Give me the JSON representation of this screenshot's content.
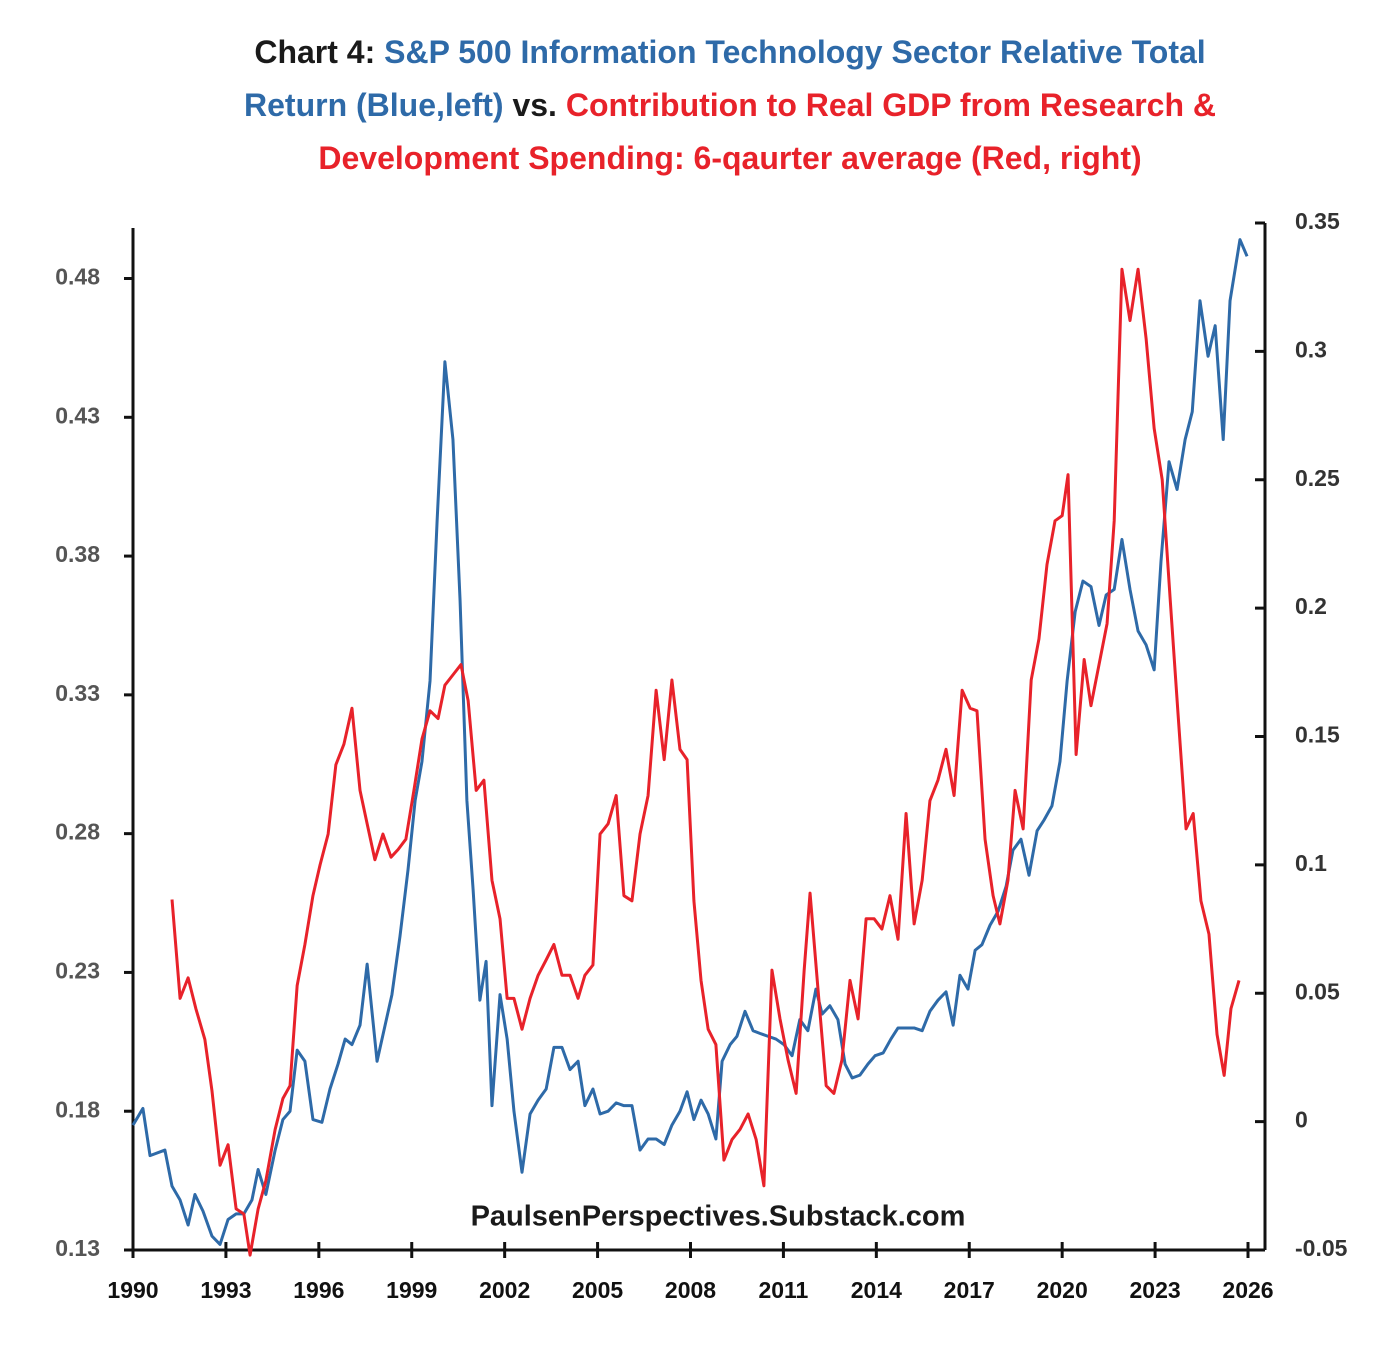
{
  "chart_data": {
    "type": "line",
    "title_lines": [
      [
        {
          "text": "Chart 4: ",
          "color": "#1a1a1a"
        },
        {
          "text": "S&P 500 Information Technology Sector Relative Total",
          "color": "#2e6aa8"
        }
      ],
      [
        {
          "text": "Return (Blue,left)",
          "color": "#2e6aa8"
        },
        {
          "text": " vs. ",
          "color": "#1a1a1a"
        },
        {
          "text": "Contribution to Real GDP from Research &",
          "color": "#e8222a"
        }
      ],
      [
        {
          "text": "Development Spending: 6-qaurter average (Red, right)",
          "color": "#e8222a"
        }
      ]
    ],
    "annotation": "PaulsenPerspectives.Substack.com",
    "xlim": [
      1990,
      2026
    ],
    "xticks": [
      1990,
      1993,
      1996,
      1999,
      2002,
      2005,
      2008,
      2011,
      2014,
      2017,
      2020,
      2023,
      2026
    ],
    "ylim": [
      0.13,
      0.5
    ],
    "yticks": [
      0.13,
      0.18,
      0.23,
      0.28,
      0.33,
      0.38,
      0.43,
      0.48
    ],
    "y2lim": [
      -0.05,
      0.35
    ],
    "y2ticks": [
      -0.05,
      0,
      0.05,
      0.1,
      0.15,
      0.2,
      0.25,
      0.3,
      0.35
    ],
    "series": [
      {
        "color": "#2e6aa8",
        "axis": "y",
        "x": [
          1990.0,
          1990.32,
          1990.55,
          1991.03,
          1991.26,
          1991.52,
          1991.78,
          1992.0,
          1992.26,
          1992.55,
          1992.81,
          1993.07,
          1993.33,
          1993.58,
          1993.84,
          1994.04,
          1994.29,
          1994.59,
          1994.84,
          1995.07,
          1995.3,
          1995.55,
          1995.81,
          1996.1,
          1996.36,
          1996.62,
          1996.85,
          1997.07,
          1997.33,
          1997.56,
          1997.88,
          1998.14,
          1998.36,
          1998.62,
          1998.88,
          1999.11,
          1999.33,
          1999.59,
          1999.82,
          2000.07,
          2000.33,
          2000.56,
          2000.78,
          2000.98,
          2001.2,
          2001.4,
          2001.59,
          2001.85,
          2002.08,
          2002.3,
          2002.56,
          2002.82,
          2003.08,
          2003.34,
          2003.59,
          2003.85,
          2004.11,
          2004.37,
          2004.59,
          2004.85,
          2005.08,
          2005.34,
          2005.6,
          2005.85,
          2006.11,
          2006.37,
          2006.63,
          2006.89,
          2007.15,
          2007.4,
          2007.66,
          2007.89,
          2008.11,
          2008.34,
          2008.57,
          2008.82,
          2009.02,
          2009.28,
          2009.5,
          2009.76,
          2010.02,
          2010.25,
          2010.5,
          2010.76,
          2011.02,
          2011.28,
          2011.53,
          2011.79,
          2012.05,
          2012.25,
          2012.5,
          2012.76,
          2012.99,
          2013.22,
          2013.47,
          2013.73,
          2013.96,
          2014.22,
          2014.47,
          2014.7,
          2014.96,
          2015.22,
          2015.48,
          2015.73,
          2015.99,
          2016.25,
          2016.48,
          2016.7,
          2016.96,
          2017.19,
          2017.41,
          2017.67,
          2017.93,
          2018.19,
          2018.41,
          2018.67,
          2018.93,
          2019.19,
          2019.42,
          2019.67,
          2019.93,
          2020.16,
          2020.42,
          2020.67,
          2020.93,
          2021.19,
          2021.42,
          2021.68,
          2021.93,
          2022.19,
          2022.45,
          2022.71,
          2022.97,
          2023.19,
          2023.45,
          2023.71,
          2023.97,
          2024.2,
          2024.45,
          2024.71,
          2024.94,
          2025.2,
          2025.42,
          2025.74,
          2025.97
        ],
        "values": [
          0.175,
          0.181,
          0.164,
          0.166,
          0.153,
          0.148,
          0.139,
          0.15,
          0.144,
          0.135,
          0.132,
          0.141,
          0.143,
          0.143,
          0.148,
          0.159,
          0.15,
          0.166,
          0.177,
          0.18,
          0.202,
          0.198,
          0.177,
          0.176,
          0.188,
          0.197,
          0.206,
          0.204,
          0.211,
          0.233,
          0.198,
          0.211,
          0.222,
          0.243,
          0.267,
          0.292,
          0.306,
          0.335,
          0.393,
          0.45,
          0.422,
          0.364,
          0.292,
          0.26,
          0.22,
          0.234,
          0.182,
          0.222,
          0.206,
          0.18,
          0.158,
          0.179,
          0.184,
          0.188,
          0.203,
          0.203,
          0.195,
          0.198,
          0.182,
          0.188,
          0.179,
          0.18,
          0.183,
          0.182,
          0.182,
          0.166,
          0.17,
          0.17,
          0.168,
          0.175,
          0.18,
          0.187,
          0.177,
          0.184,
          0.179,
          0.17,
          0.198,
          0.204,
          0.207,
          0.216,
          0.209,
          0.208,
          0.207,
          0.206,
          0.204,
          0.2,
          0.213,
          0.209,
          0.224,
          0.215,
          0.218,
          0.213,
          0.197,
          0.192,
          0.193,
          0.197,
          0.2,
          0.201,
          0.206,
          0.21,
          0.21,
          0.21,
          0.209,
          0.216,
          0.22,
          0.223,
          0.211,
          0.229,
          0.224,
          0.238,
          0.24,
          0.247,
          0.252,
          0.261,
          0.274,
          0.278,
          0.265,
          0.281,
          0.285,
          0.29,
          0.306,
          0.335,
          0.36,
          0.371,
          0.369,
          0.355,
          0.366,
          0.368,
          0.386,
          0.368,
          0.353,
          0.348,
          0.339,
          0.378,
          0.414,
          0.404,
          0.422,
          0.432,
          0.472,
          0.452,
          0.463,
          0.422,
          0.472,
          0.494,
          0.488
        ]
      },
      {
        "color": "#e8222a",
        "axis": "y2",
        "x": [
          1991.26,
          1991.52,
          1991.78,
          1992.03,
          1992.32,
          1992.55,
          1992.81,
          1993.07,
          1993.33,
          1993.58,
          1993.78,
          1994.04,
          1994.29,
          1994.59,
          1994.84,
          1995.07,
          1995.3,
          1995.55,
          1995.81,
          1996.04,
          1996.3,
          1996.55,
          1996.81,
          1997.07,
          1997.33,
          1997.56,
          1997.81,
          1998.07,
          1998.33,
          1998.56,
          1998.81,
          1999.07,
          1999.33,
          1999.59,
          1999.85,
          2000.07,
          2000.33,
          2000.59,
          2000.82,
          2001.08,
          2001.33,
          2001.59,
          2001.85,
          2002.08,
          2002.3,
          2002.56,
          2002.82,
          2003.08,
          2003.34,
          2003.59,
          2003.85,
          2004.11,
          2004.37,
          2004.59,
          2004.85,
          2005.08,
          2005.34,
          2005.6,
          2005.85,
          2006.11,
          2006.37,
          2006.63,
          2006.89,
          2007.15,
          2007.4,
          2007.66,
          2007.89,
          2008.11,
          2008.34,
          2008.57,
          2008.82,
          2009.08,
          2009.34,
          2009.6,
          2009.86,
          2010.12,
          2010.37,
          2010.63,
          2010.89,
          2011.15,
          2011.41,
          2011.67,
          2011.86,
          2012.12,
          2012.38,
          2012.63,
          2012.89,
          2013.15,
          2013.41,
          2013.67,
          2013.93,
          2014.18,
          2014.44,
          2014.7,
          2014.96,
          2015.22,
          2015.48,
          2015.73,
          2015.99,
          2016.25,
          2016.51,
          2016.77,
          2017.03,
          2017.25,
          2017.51,
          2017.77,
          2017.99,
          2018.25,
          2018.48,
          2018.74,
          2019.0,
          2019.25,
          2019.51,
          2019.77,
          2020.0,
          2020.19,
          2020.45,
          2020.71,
          2020.93,
          2021.19,
          2021.45,
          2021.68,
          2021.93,
          2022.19,
          2022.45,
          2022.71,
          2022.97,
          2023.23,
          2023.49,
          2023.74,
          2024.0,
          2024.23,
          2024.48,
          2024.74,
          2025.0,
          2025.23,
          2025.45,
          2025.71
        ],
        "values": [
          0.0865,
          0.048,
          0.056,
          0.044,
          0.032,
          0.012,
          -0.017,
          -0.009,
          -0.034,
          -0.036,
          -0.052,
          -0.034,
          -0.023,
          -0.003,
          0.009,
          0.014,
          0.053,
          0.069,
          0.088,
          0.1,
          0.112,
          0.139,
          0.147,
          0.161,
          0.129,
          0.116,
          0.102,
          0.112,
          0.103,
          0.106,
          0.11,
          0.129,
          0.149,
          0.16,
          0.157,
          0.17,
          0.174,
          0.178,
          0.164,
          0.129,
          0.133,
          0.094,
          0.079,
          0.048,
          0.048,
          0.036,
          0.048,
          0.057,
          0.063,
          0.069,
          0.057,
          0.057,
          0.048,
          0.057,
          0.061,
          0.112,
          0.116,
          0.127,
          0.088,
          0.086,
          0.112,
          0.127,
          0.168,
          0.141,
          0.172,
          0.145,
          0.141,
          0.086,
          0.055,
          0.036,
          0.03,
          -0.015,
          -0.007,
          -0.003,
          0.003,
          -0.007,
          -0.025,
          0.059,
          0.04,
          0.024,
          0.011,
          0.059,
          0.089,
          0.051,
          0.014,
          0.011,
          0.024,
          0.055,
          0.04,
          0.079,
          0.079,
          0.075,
          0.088,
          0.071,
          0.12,
          0.077,
          0.094,
          0.125,
          0.133,
          0.145,
          0.127,
          0.168,
          0.161,
          0.16,
          0.11,
          0.088,
          0.077,
          0.094,
          0.129,
          0.114,
          0.172,
          0.188,
          0.217,
          0.234,
          0.236,
          0.252,
          0.143,
          0.18,
          0.162,
          0.178,
          0.194,
          0.234,
          0.332,
          0.312,
          0.332,
          0.305,
          0.27,
          0.25,
          0.203,
          0.159,
          0.114,
          0.12,
          0.086,
          0.073,
          0.034,
          0.018,
          0.044,
          0.055
        ]
      }
    ]
  }
}
